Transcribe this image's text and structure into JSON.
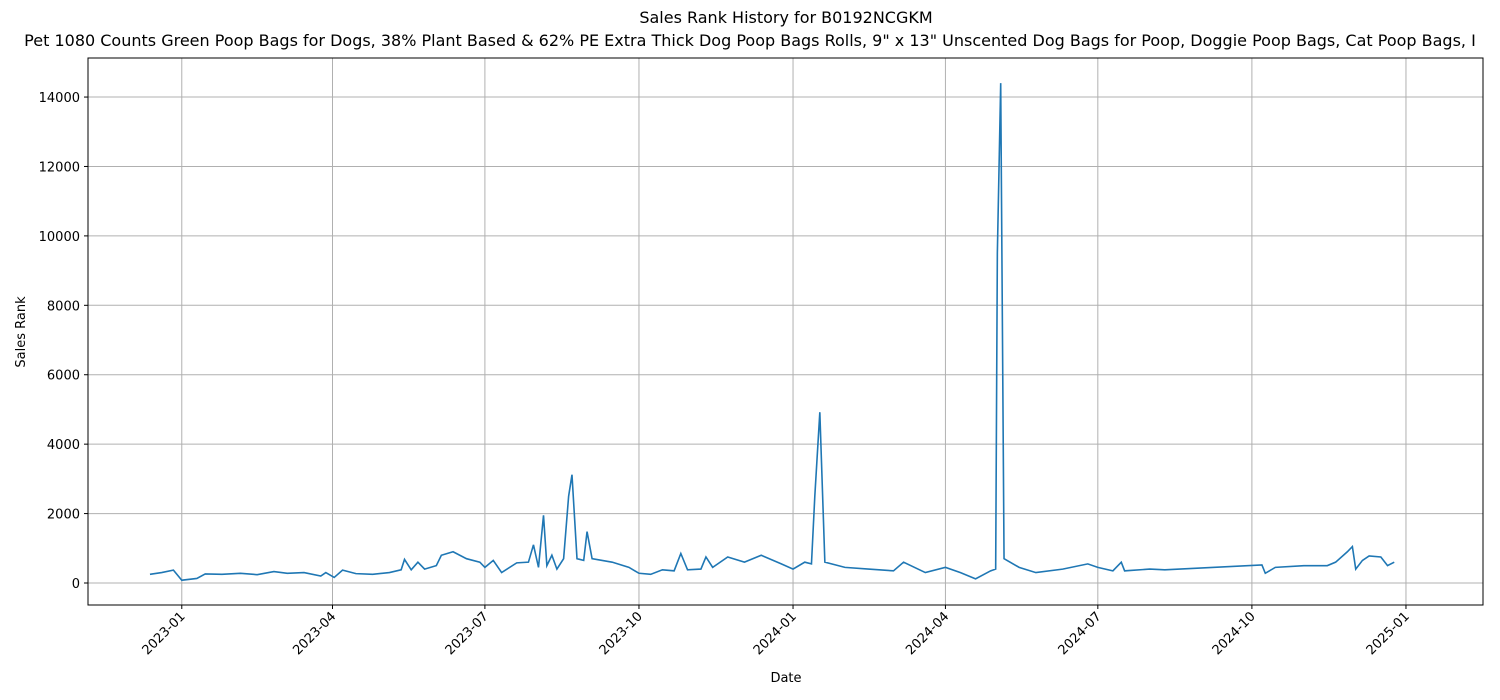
{
  "chart_data": {
    "type": "line",
    "title": "Sales Rank History for B0192NCGKM",
    "subtitle": "Pet 1080 Counts Green Poop Bags for Dogs, 38% Plant Based & 62% PE Extra Thick Dog Poop Bags Rolls, 9\" x 13\" Unscented Dog Bags for Poop, Doggie Poop Bags, Cat Poop Bags, I",
    "x_label": "Date",
    "y_label": "Sales Rank",
    "grid": true,
    "xlim": [
      "2022-11-06",
      "2025-02-16"
    ],
    "xticks": [
      {
        "value": "2023-01-01",
        "label": "2023-01"
      },
      {
        "value": "2023-04-01",
        "label": "2023-04"
      },
      {
        "value": "2023-07-01",
        "label": "2023-07"
      },
      {
        "value": "2023-10-01",
        "label": "2023-10"
      },
      {
        "value": "2024-01-01",
        "label": "2024-01"
      },
      {
        "value": "2024-04-01",
        "label": "2024-04"
      },
      {
        "value": "2024-07-01",
        "label": "2024-07"
      },
      {
        "value": "2024-10-01",
        "label": "2024-10"
      },
      {
        "value": "2025-01-01",
        "label": "2025-01"
      }
    ],
    "ylim": [
      -634,
      15125
    ],
    "yticks": [
      0,
      2000,
      4000,
      6000,
      8000,
      10000,
      12000,
      14000
    ],
    "x": [
      "2022-12-13",
      "2022-12-20",
      "2022-12-27",
      "2023-01-01",
      "2023-01-10",
      "2023-01-15",
      "2023-01-25",
      "2023-02-05",
      "2023-02-15",
      "2023-02-25",
      "2023-03-05",
      "2023-03-15",
      "2023-03-25",
      "2023-03-28",
      "2023-04-02",
      "2023-04-07",
      "2023-04-15",
      "2023-04-25",
      "2023-05-05",
      "2023-05-12",
      "2023-05-14",
      "2023-05-18",
      "2023-05-22",
      "2023-05-26",
      "2023-06-02",
      "2023-06-05",
      "2023-06-12",
      "2023-06-20",
      "2023-06-28",
      "2023-07-01",
      "2023-07-06",
      "2023-07-11",
      "2023-07-20",
      "2023-07-27",
      "2023-07-30",
      "2023-08-02",
      "2023-08-05",
      "2023-08-07",
      "2023-08-10",
      "2023-08-13",
      "2023-08-17",
      "2023-08-20",
      "2023-08-22",
      "2023-08-25",
      "2023-08-29",
      "2023-08-31",
      "2023-09-03",
      "2023-09-15",
      "2023-09-25",
      "2023-10-01",
      "2023-10-08",
      "2023-10-15",
      "2023-10-22",
      "2023-10-26",
      "2023-10-30",
      "2023-11-07",
      "2023-11-10",
      "2023-11-14",
      "2023-11-23",
      "2023-12-03",
      "2023-12-13",
      "2023-12-25",
      "2024-01-01",
      "2024-01-08",
      "2024-01-12",
      "2024-01-14",
      "2024-01-17",
      "2024-01-20",
      "2024-02-01",
      "2024-02-15",
      "2024-03-01",
      "2024-03-07",
      "2024-03-20",
      "2024-04-01",
      "2024-04-10",
      "2024-04-19",
      "2024-04-28",
      "2024-05-01",
      "2024-05-02",
      "2024-05-04",
      "2024-05-06",
      "2024-05-15",
      "2024-05-25",
      "2024-06-10",
      "2024-06-25",
      "2024-07-01",
      "2024-07-10",
      "2024-07-15",
      "2024-07-17",
      "2024-08-01",
      "2024-08-10",
      "2024-10-07",
      "2024-10-09",
      "2024-10-15",
      "2024-11-01",
      "2024-11-15",
      "2024-11-20",
      "2024-11-27",
      "2024-11-30",
      "2024-12-02",
      "2024-12-06",
      "2024-12-10",
      "2024-12-17",
      "2024-12-21",
      "2024-12-25"
    ],
    "series": [
      {
        "name": "Sales Rank",
        "color": "#1f77b4",
        "values": [
          250,
          300,
          370,
          80,
          130,
          260,
          250,
          280,
          240,
          330,
          280,
          300,
          200,
          300,
          160,
          370,
          270,
          250,
          300,
          380,
          680,
          380,
          600,
          400,
          500,
          800,
          900,
          700,
          600,
          450,
          650,
          300,
          580,
          600,
          1100,
          450,
          1950,
          500,
          800,
          400,
          700,
          2500,
          3120,
          700,
          650,
          1480,
          700,
          600,
          450,
          280,
          250,
          380,
          350,
          850,
          380,
          400,
          750,
          450,
          750,
          600,
          800,
          550,
          400,
          600,
          550,
          2500,
          4920,
          600,
          450,
          400,
          350,
          600,
          300,
          450,
          300,
          120,
          350,
          400,
          9500,
          14400,
          700,
          450,
          300,
          400,
          550,
          450,
          350,
          600,
          350,
          400,
          380,
          520,
          280,
          450,
          500,
          500,
          600,
          900,
          1050,
          400,
          650,
          780,
          750,
          500,
          600
        ]
      }
    ]
  }
}
